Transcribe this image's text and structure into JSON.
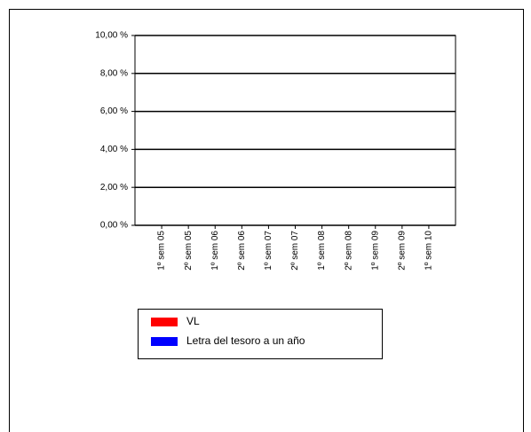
{
  "chart_data": {
    "type": "bar",
    "categories": [
      "1º sem 05",
      "2º sem 05",
      "1º sem 06",
      "2º sem 06",
      "1º sem 07",
      "2º sem 07",
      "1º sem 08",
      "2º sem 08",
      "1º sem 09",
      "2º sem 09",
      "1º sem 10"
    ],
    "series": [
      {
        "name": "VL",
        "color": "#ff0000",
        "values": [
          null,
          null,
          null,
          null,
          null,
          null,
          null,
          null,
          null,
          null,
          null
        ]
      },
      {
        "name": "Letra del tesoro a un año",
        "color": "#0000ff",
        "values": [
          null,
          null,
          null,
          null,
          null,
          null,
          null,
          null,
          null,
          null,
          null
        ]
      }
    ],
    "ylim": [
      0,
      10
    ],
    "yticks": [
      {
        "value": 0,
        "label": "0,00 %"
      },
      {
        "value": 2,
        "label": "2,00 %"
      },
      {
        "value": 4,
        "label": "4,00 %"
      },
      {
        "value": 6,
        "label": "6,00 %"
      },
      {
        "value": 8,
        "label": "8,00 %"
      },
      {
        "value": 10,
        "label": "10,00 %"
      }
    ],
    "grid": true
  }
}
